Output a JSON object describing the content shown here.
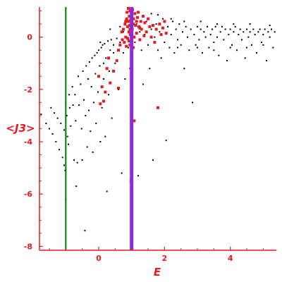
{
  "chart_data": {
    "type": "scatter",
    "title": "",
    "xlabel": "E",
    "ylabel": "<J3>",
    "xlim": [
      -1.8,
      5.4
    ],
    "ylim": [
      -8.15,
      1.15
    ],
    "x_ticks": [
      0,
      2,
      4
    ],
    "y_ticks": [
      0,
      -2,
      -4,
      -6,
      -8
    ],
    "grid": false,
    "legend": "none",
    "colors": {
      "axis": "#e8191f",
      "black_series": "#000000",
      "red_series": "#e8191f",
      "green_line": "#007a00",
      "purple_line": "#8a2be2"
    },
    "vertical_lines": [
      {
        "x": -1.0,
        "color": "#007a00"
      },
      {
        "x": 1.0,
        "color": "#8a2be2"
      }
    ],
    "series": [
      {
        "color": "#000000",
        "points": [
          [
            -1.75,
            -2.95
          ],
          [
            -1.6,
            -3.3
          ],
          [
            -1.5,
            -3.5
          ],
          [
            -1.45,
            -2.7
          ],
          [
            -1.4,
            -3.7
          ],
          [
            -1.35,
            -2.9
          ],
          [
            -1.3,
            -4.0
          ],
          [
            -1.25,
            -3.1
          ],
          [
            -1.2,
            -4.3
          ],
          [
            -1.15,
            -3.3
          ],
          [
            -1.1,
            -4.6
          ],
          [
            -1.05,
            -3.55
          ],
          [
            -1.05,
            -4.9
          ],
          [
            -1.02,
            -5.1
          ],
          [
            -1.0,
            -2.5
          ],
          [
            -1.0,
            -6.2
          ],
          [
            -0.97,
            -3.0
          ],
          [
            -0.95,
            -3.8
          ],
          [
            -0.92,
            -4.1
          ],
          [
            -0.9,
            -2.2
          ],
          [
            -0.88,
            -2.7
          ],
          [
            -0.85,
            -3.4
          ],
          [
            -0.8,
            -1.9
          ],
          [
            -0.78,
            -2.6
          ],
          [
            -0.75,
            -4.7
          ],
          [
            -0.72,
            -2.2
          ],
          [
            -0.7,
            -3.2
          ],
          [
            -0.68,
            -5.7
          ],
          [
            -0.65,
            -4.8
          ],
          [
            -0.62,
            -1.5
          ],
          [
            -0.6,
            -2.6
          ],
          [
            -0.55,
            -1.8
          ],
          [
            -0.52,
            -3.5
          ],
          [
            -0.5,
            -4.7
          ],
          [
            -0.48,
            -1.3
          ],
          [
            -0.45,
            -2.4
          ],
          [
            -0.42,
            -7.4
          ],
          [
            -0.4,
            -3.0
          ],
          [
            -0.38,
            -1.1
          ],
          [
            -0.35,
            -4.2
          ],
          [
            -0.32,
            -1.6
          ],
          [
            -0.3,
            -2.8
          ],
          [
            -0.28,
            -0.95
          ],
          [
            -0.25,
            -3.6
          ],
          [
            -0.22,
            -1.9
          ],
          [
            -0.2,
            -0.8
          ],
          [
            -0.18,
            -4.4
          ],
          [
            -0.15,
            -2.5
          ],
          [
            -0.12,
            -0.7
          ],
          [
            -0.1,
            -1.4
          ],
          [
            -0.08,
            -3.3
          ],
          [
            -0.05,
            -0.6
          ],
          [
            -0.02,
            -2.1
          ],
          [
            0.0,
            -0.5
          ],
          [
            0.03,
            -1.1
          ],
          [
            0.05,
            -4.0
          ],
          [
            0.08,
            -0.4
          ],
          [
            0.1,
            -2.7
          ],
          [
            0.12,
            -0.3
          ],
          [
            0.15,
            -1.6
          ],
          [
            0.18,
            -0.25
          ],
          [
            0.2,
            -3.8
          ],
          [
            0.22,
            -0.8
          ],
          [
            0.25,
            -5.9
          ],
          [
            0.28,
            -0.15
          ],
          [
            0.3,
            -2.2
          ],
          [
            0.32,
            -1.3
          ],
          [
            0.35,
            -0.5
          ],
          [
            0.38,
            -0.1
          ],
          [
            0.4,
            -3.1
          ],
          [
            0.45,
            -0.3
          ],
          [
            0.5,
            -1.0
          ],
          [
            0.55,
            -0.05
          ],
          [
            0.6,
            -2.0
          ],
          [
            0.65,
            -0.2
          ],
          [
            0.7,
            -5.2
          ],
          [
            0.75,
            -0.6
          ],
          [
            0.8,
            -1.6
          ],
          [
            0.85,
            0.0
          ],
          [
            0.9,
            -0.4
          ],
          [
            0.95,
            -1.2
          ],
          [
            1.1,
            -0.2
          ],
          [
            1.2,
            -5.3
          ],
          [
            1.25,
            0.2
          ],
          [
            1.3,
            -0.5
          ],
          [
            1.35,
            -1.8
          ],
          [
            1.4,
            0.1
          ],
          [
            1.45,
            0.6
          ],
          [
            1.5,
            -0.3
          ],
          [
            1.55,
            -1.2
          ],
          [
            1.6,
            0.3
          ],
          [
            1.65,
            -4.7
          ],
          [
            1.7,
            0.0
          ],
          [
            1.75,
            0.5
          ],
          [
            1.8,
            -0.5
          ],
          [
            1.85,
            0.2
          ],
          [
            1.9,
            -0.8
          ],
          [
            1.95,
            0.7
          ],
          [
            2.0,
            -0.2
          ],
          [
            2.05,
            -3.95
          ],
          [
            2.1,
            0.4
          ],
          [
            2.15,
            -0.4
          ],
          [
            2.2,
            0.1
          ],
          [
            2.25,
            0.6
          ],
          [
            2.3,
            -0.6
          ],
          [
            2.35,
            0.3
          ],
          [
            2.4,
            -0.1
          ],
          [
            2.45,
            0.5
          ],
          [
            2.5,
            -0.3
          ],
          [
            2.55,
            0.2
          ],
          [
            2.6,
            -1.2
          ],
          [
            2.65,
            0.4
          ],
          [
            2.7,
            0.0
          ],
          [
            2.75,
            -0.5
          ],
          [
            2.8,
            0.3
          ],
          [
            2.85,
            -2.5
          ],
          [
            2.9,
            0.1
          ],
          [
            2.95,
            -0.3
          ],
          [
            3.0,
            0.4
          ],
          [
            3.05,
            -0.1
          ],
          [
            3.1,
            0.3
          ],
          [
            3.15,
            -0.6
          ],
          [
            3.2,
            0.2
          ],
          [
            3.25,
            0.0
          ],
          [
            3.3,
            0.4
          ],
          [
            3.35,
            -0.4
          ],
          [
            3.4,
            0.1
          ],
          [
            3.45,
            0.3
          ],
          [
            3.5,
            -0.2
          ],
          [
            3.55,
            0.4
          ],
          [
            3.6,
            0.0
          ],
          [
            3.65,
            -0.7
          ],
          [
            3.7,
            0.2
          ],
          [
            3.75,
            0.4
          ],
          [
            3.8,
            -0.1
          ],
          [
            3.85,
            0.3
          ],
          [
            3.9,
            -0.9
          ],
          [
            3.95,
            0.1
          ],
          [
            4.0,
            0.3
          ],
          [
            4.05,
            -0.3
          ],
          [
            4.1,
            0.2
          ],
          [
            4.15,
            0.4
          ],
          [
            4.2,
            -0.5
          ],
          [
            4.25,
            0.1
          ],
          [
            4.3,
            0.3
          ],
          [
            4.35,
            -0.1
          ],
          [
            4.4,
            0.2
          ],
          [
            4.45,
            -0.8
          ],
          [
            4.5,
            0.3
          ],
          [
            4.55,
            0.0
          ],
          [
            4.6,
            0.2
          ],
          [
            4.65,
            -0.3
          ],
          [
            4.7,
            0.3
          ],
          [
            4.75,
            0.1
          ],
          [
            4.8,
            -0.6
          ],
          [
            4.85,
            0.2
          ],
          [
            4.9,
            0.3
          ],
          [
            4.95,
            -0.2
          ],
          [
            5.0,
            0.1
          ],
          [
            5.05,
            0.3
          ],
          [
            5.1,
            -0.9
          ],
          [
            5.15,
            0.2
          ],
          [
            5.2,
            0.0
          ],
          [
            5.25,
            0.3
          ],
          [
            5.3,
            -0.4
          ],
          [
            5.35,
            0.2
          ],
          [
            0.05,
            -0.2
          ],
          [
            0.15,
            -1.0
          ],
          [
            0.35,
            0.3
          ],
          [
            0.45,
            -0.6
          ],
          [
            0.65,
            0.4
          ],
          [
            0.75,
            0.2
          ],
          [
            1.15,
            0.5
          ],
          [
            1.6,
            0.9
          ],
          [
            1.8,
            0.85
          ],
          [
            2.2,
            0.7
          ],
          [
            2.6,
            0.6
          ],
          [
            3.1,
            0.6
          ],
          [
            3.6,
            0.5
          ],
          [
            4.1,
            0.5
          ],
          [
            4.6,
            0.5
          ],
          [
            5.2,
            0.45
          ],
          [
            2.4,
            -0.4
          ],
          [
            3.0,
            -0.4
          ],
          [
            3.5,
            -0.5
          ],
          [
            4.0,
            -0.4
          ],
          [
            4.5,
            -0.4
          ],
          [
            5.0,
            -0.3
          ]
        ]
      },
      {
        "color": "#e8191f",
        "points": [
          [
            0.0,
            -1.5
          ],
          [
            0.1,
            -1.9
          ],
          [
            0.2,
            -2.1
          ],
          [
            0.05,
            -2.55
          ],
          [
            0.15,
            -2.45
          ],
          [
            0.25,
            -1.2
          ],
          [
            0.3,
            -0.8
          ],
          [
            0.35,
            -1.75
          ],
          [
            0.45,
            -1.3
          ],
          [
            0.55,
            -0.9
          ],
          [
            0.6,
            -1.95
          ],
          [
            0.6,
            -0.5
          ],
          [
            0.65,
            -0.3
          ],
          [
            0.7,
            0.2
          ],
          [
            0.72,
            -0.1
          ],
          [
            0.75,
            0.3
          ],
          [
            0.78,
            -0.2
          ],
          [
            0.8,
            0.5
          ],
          [
            0.82,
            0.0
          ],
          [
            0.84,
            -0.35
          ],
          [
            0.85,
            0.7
          ],
          [
            0.86,
            0.95
          ],
          [
            0.88,
            -0.05
          ],
          [
            0.88,
            0.4
          ],
          [
            0.9,
            1.1
          ],
          [
            0.9,
            0.6
          ],
          [
            0.92,
            -0.15
          ],
          [
            0.92,
            0.2
          ],
          [
            0.93,
            0.8
          ],
          [
            0.94,
            0.45
          ],
          [
            0.95,
            1.0
          ],
          [
            0.95,
            -0.3
          ],
          [
            0.96,
            0.1
          ],
          [
            0.97,
            0.65
          ],
          [
            0.98,
            -5.5
          ],
          [
            1.02,
            0.3
          ],
          [
            1.03,
            1.05
          ],
          [
            1.05,
            -0.4
          ],
          [
            1.06,
            0.7
          ],
          [
            1.08,
            0.0
          ],
          [
            1.08,
            -3.2
          ],
          [
            1.1,
            0.9
          ],
          [
            1.12,
            0.45
          ],
          [
            1.15,
            0.15
          ],
          [
            1.18,
            0.75
          ],
          [
            1.2,
            0.95
          ],
          [
            1.22,
            0.4
          ],
          [
            1.25,
            -0.1
          ],
          [
            1.28,
            0.6
          ],
          [
            1.3,
            0.3
          ],
          [
            1.35,
            0.8
          ],
          [
            1.38,
            0.05
          ],
          [
            1.4,
            0.55
          ],
          [
            1.45,
            0.2
          ],
          [
            1.5,
            0.7
          ],
          [
            1.55,
            0.4
          ],
          [
            1.6,
            0.0
          ],
          [
            1.65,
            0.45
          ],
          [
            1.7,
            -0.2
          ],
          [
            1.75,
            0.3
          ],
          [
            1.8,
            -2.7
          ],
          [
            1.85,
            0.5
          ],
          [
            1.9,
            0.1
          ],
          [
            1.95,
            0.35
          ],
          [
            2.0,
            0.6
          ],
          [
            2.05,
            0.15
          ],
          [
            0.82,
            0.6
          ],
          [
            0.95,
            0.3
          ],
          [
            1.0,
            0.75
          ],
          [
            1.05,
            0.5
          ],
          [
            1.15,
            0.6
          ],
          [
            1.25,
            0.35
          ]
        ]
      }
    ]
  }
}
